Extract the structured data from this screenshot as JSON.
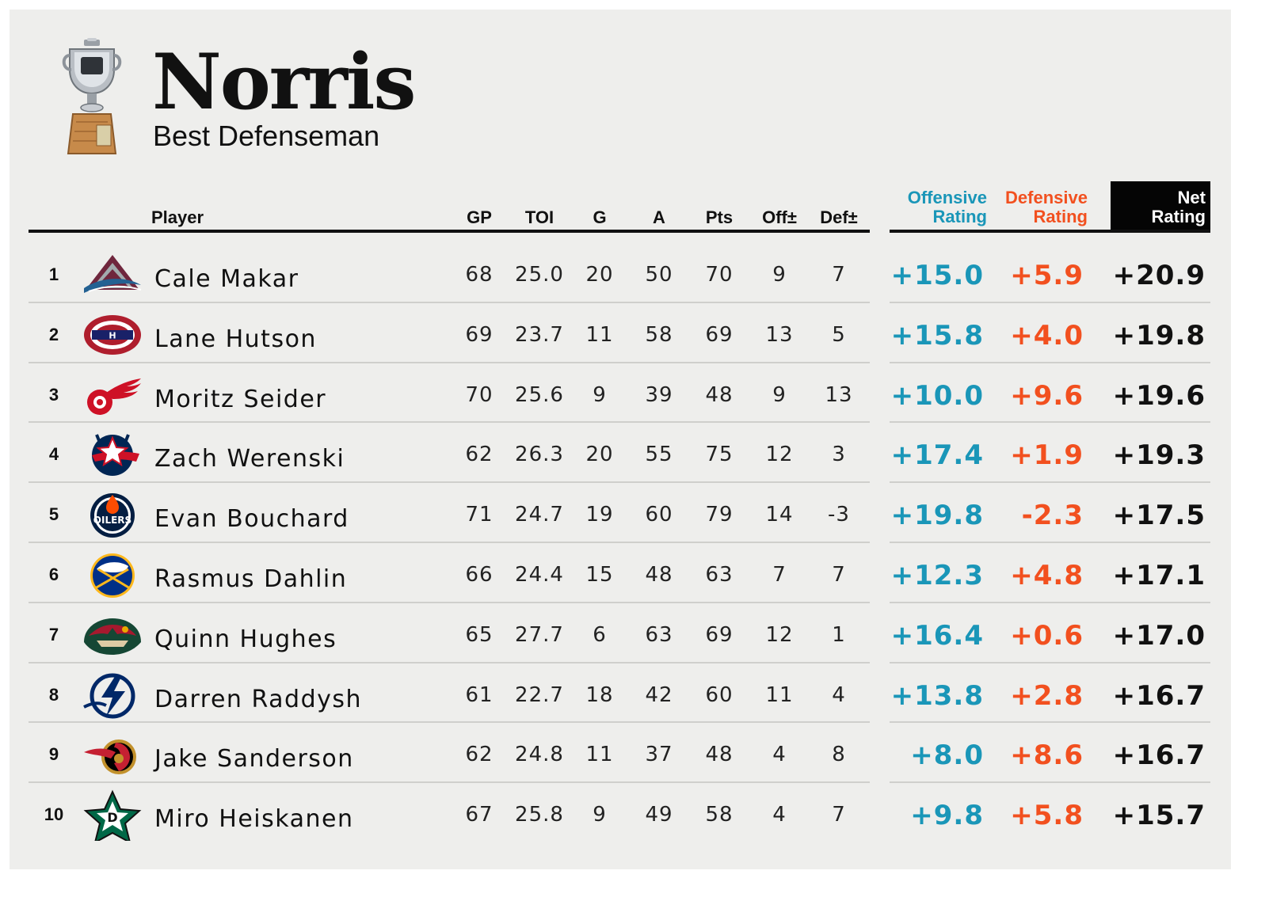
{
  "header": {
    "title": "Norris",
    "subtitle": "Best Defenseman"
  },
  "columns": {
    "player": "Player",
    "gp": "GP",
    "toi": "TOI",
    "g": "G",
    "a": "A",
    "pts": "Pts",
    "off_pm": "Off±",
    "def_pm": "Def±",
    "off_rating_l1": "Offensive",
    "off_rating_l2": "Rating",
    "def_rating_l1": "Defensive",
    "def_rating_l2": "Rating",
    "net_rating_l1": "Net",
    "net_rating_l2": "Rating"
  },
  "colors": {
    "offensive": "#1a96b8",
    "defensive": "#f2501f",
    "net_header_bg": "#050505",
    "card_bg": "#eeeeec"
  },
  "rows": [
    {
      "rank": "1",
      "player": "Cale Makar",
      "team_logo": "avalanche-logo",
      "gp": "68",
      "toi": "25.0",
      "g": "20",
      "a": "50",
      "pts": "70",
      "off": "9",
      "def": "7",
      "off_rating": "+15.0",
      "def_rating": "+5.9",
      "net_rating": "+20.9"
    },
    {
      "rank": "2",
      "player": "Lane Hutson",
      "team_logo": "canadiens-logo",
      "gp": "69",
      "toi": "23.7",
      "g": "11",
      "a": "58",
      "pts": "69",
      "off": "13",
      "def": "5",
      "off_rating": "+15.8",
      "def_rating": "+4.0",
      "net_rating": "+19.8"
    },
    {
      "rank": "3",
      "player": "Moritz Seider",
      "team_logo": "red-wings-logo",
      "gp": "70",
      "toi": "25.6",
      "g": "9",
      "a": "39",
      "pts": "48",
      "off": "9",
      "def": "13",
      "off_rating": "+10.0",
      "def_rating": "+9.6",
      "net_rating": "+19.6"
    },
    {
      "rank": "4",
      "player": "Zach Werenski",
      "team_logo": "blue-jackets-logo",
      "gp": "62",
      "toi": "26.3",
      "g": "20",
      "a": "55",
      "pts": "75",
      "off": "12",
      "def": "3",
      "off_rating": "+17.4",
      "def_rating": "+1.9",
      "net_rating": "+19.3"
    },
    {
      "rank": "5",
      "player": "Evan Bouchard",
      "team_logo": "oilers-logo",
      "gp": "71",
      "toi": "24.7",
      "g": "19",
      "a": "60",
      "pts": "79",
      "off": "14",
      "def": "-3",
      "off_rating": "+19.8",
      "def_rating": "-2.3",
      "net_rating": "+17.5"
    },
    {
      "rank": "6",
      "player": "Rasmus Dahlin",
      "team_logo": "sabres-logo",
      "gp": "66",
      "toi": "24.4",
      "g": "15",
      "a": "48",
      "pts": "63",
      "off": "7",
      "def": "7",
      "off_rating": "+12.3",
      "def_rating": "+4.8",
      "net_rating": "+17.1"
    },
    {
      "rank": "7",
      "player": "Quinn Hughes",
      "team_logo": "wild-logo",
      "gp": "65",
      "toi": "27.7",
      "g": "6",
      "a": "63",
      "pts": "69",
      "off": "12",
      "def": "1",
      "off_rating": "+16.4",
      "def_rating": "+0.6",
      "net_rating": "+17.0"
    },
    {
      "rank": "8",
      "player": "Darren Raddysh",
      "team_logo": "lightning-logo",
      "gp": "61",
      "toi": "22.7",
      "g": "18",
      "a": "42",
      "pts": "60",
      "off": "11",
      "def": "4",
      "off_rating": "+13.8",
      "def_rating": "+2.8",
      "net_rating": "+16.7"
    },
    {
      "rank": "9",
      "player": "Jake Sanderson",
      "team_logo": "senators-logo",
      "gp": "62",
      "toi": "24.8",
      "g": "11",
      "a": "37",
      "pts": "48",
      "off": "4",
      "def": "8",
      "off_rating": "+8.0",
      "def_rating": "+8.6",
      "net_rating": "+16.7"
    },
    {
      "rank": "10",
      "player": "Miro Heiskanen",
      "team_logo": "stars-logo",
      "gp": "67",
      "toi": "25.8",
      "g": "9",
      "a": "49",
      "pts": "58",
      "off": "4",
      "def": "7",
      "off_rating": "+9.8",
      "def_rating": "+5.8",
      "net_rating": "+15.7"
    }
  ]
}
